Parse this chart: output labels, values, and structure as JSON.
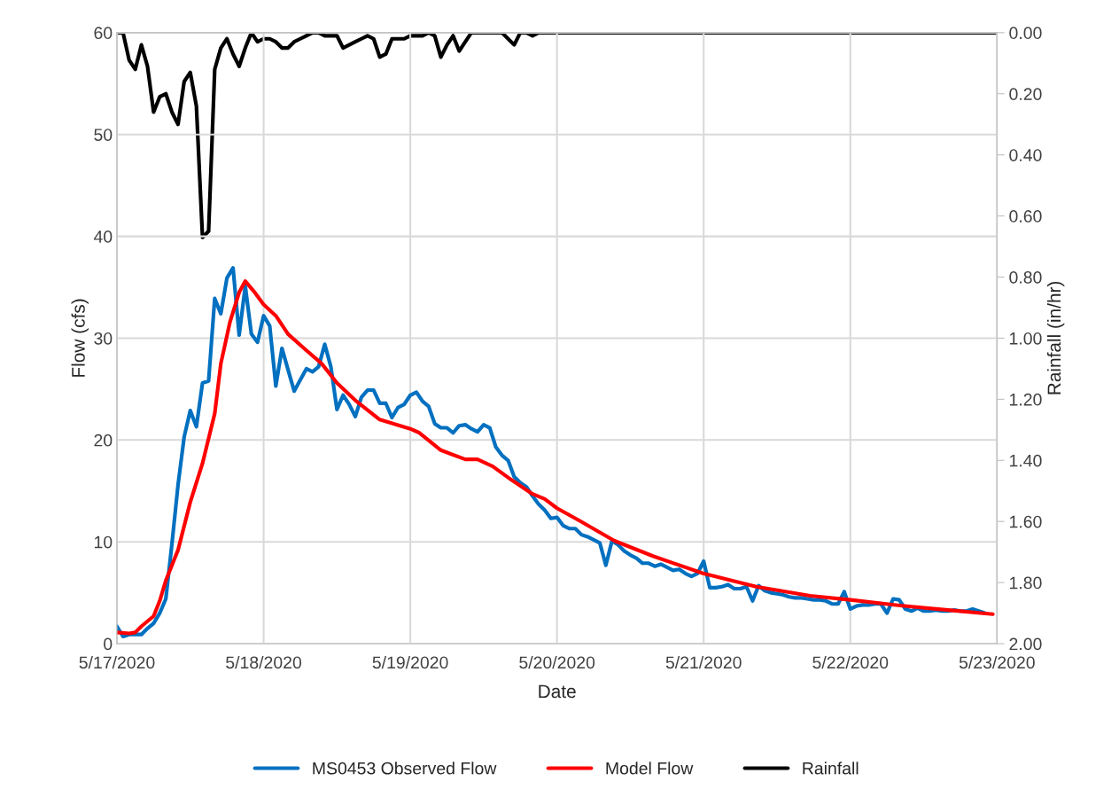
{
  "chart_data": {
    "type": "line",
    "xlabel": "Date",
    "ylabel": "Flow (cfs)",
    "y2label": "Rainfall (in/hr)",
    "xlim": [
      "2020-05-17",
      "2020-05-23"
    ],
    "xticks": [
      {
        "value": "2020-05-17",
        "label": "5/17/2020"
      },
      {
        "value": "2020-05-18",
        "label": "5/18/2020"
      },
      {
        "value": "2020-05-19",
        "label": "5/19/2020"
      },
      {
        "value": "2020-05-20",
        "label": "5/20/2020"
      },
      {
        "value": "2020-05-21",
        "label": "5/21/2020"
      },
      {
        "value": "2020-05-22",
        "label": "5/22/2020"
      },
      {
        "value": "2020-05-23",
        "label": "5/23/2020"
      }
    ],
    "ylim": [
      0,
      60
    ],
    "yticks": [
      0,
      10,
      20,
      30,
      40,
      50,
      60
    ],
    "y2lim": [
      2,
      0
    ],
    "y2ticks": [
      {
        "value": 0,
        "label": "0.00"
      },
      {
        "value": 0.2,
        "label": "0.20"
      },
      {
        "value": 0.4,
        "label": "0.40"
      },
      {
        "value": 0.6,
        "label": "0.60"
      },
      {
        "value": 0.8,
        "label": "0.80"
      },
      {
        "value": 1,
        "label": "1.00"
      },
      {
        "value": 1.2,
        "label": "1.20"
      },
      {
        "value": 1.4,
        "label": "1.40"
      },
      {
        "value": 1.6,
        "label": "1.60"
      },
      {
        "value": 1.8,
        "label": "1.80"
      },
      {
        "value": 2,
        "label": "2.00"
      }
    ],
    "grid": true,
    "legend": "bottom",
    "marker": "none",
    "line_style": "solid",
    "series": [
      {
        "name": "MS0453 Observed Flow",
        "color": "#0070c0",
        "x": [
          "2020-05-17T00:00",
          "2020-05-17T01:00",
          "2020-05-17T02:00",
          "2020-05-17T03:00",
          "2020-05-17T04:00",
          "2020-05-17T05:00",
          "2020-05-17T06:00",
          "2020-05-17T07:00",
          "2020-05-17T08:00",
          "2020-05-17T09:00",
          "2020-05-17T10:00",
          "2020-05-17T11:00",
          "2020-05-17T12:00",
          "2020-05-17T13:00",
          "2020-05-17T14:00",
          "2020-05-17T15:00",
          "2020-05-17T16:00",
          "2020-05-17T17:00",
          "2020-05-17T18:00",
          "2020-05-17T19:00",
          "2020-05-17T20:00",
          "2020-05-17T21:00",
          "2020-05-17T22:00",
          "2020-05-17T23:00",
          "2020-05-18T00:00",
          "2020-05-18T01:00",
          "2020-05-18T02:00",
          "2020-05-18T03:00",
          "2020-05-18T04:00",
          "2020-05-18T05:00",
          "2020-05-18T06:00",
          "2020-05-18T07:00",
          "2020-05-18T08:00",
          "2020-05-18T09:00",
          "2020-05-18T10:00",
          "2020-05-18T11:00",
          "2020-05-18T12:00",
          "2020-05-18T13:00",
          "2020-05-18T14:00",
          "2020-05-18T15:00",
          "2020-05-18T16:00",
          "2020-05-18T17:00",
          "2020-05-18T18:00",
          "2020-05-18T19:00",
          "2020-05-18T20:00",
          "2020-05-18T21:00",
          "2020-05-18T22:00",
          "2020-05-18T23:00",
          "2020-05-19T00:00",
          "2020-05-19T01:00",
          "2020-05-19T02:00",
          "2020-05-19T03:00",
          "2020-05-19T04:00",
          "2020-05-19T05:00",
          "2020-05-19T06:00",
          "2020-05-19T07:00",
          "2020-05-19T08:00",
          "2020-05-19T09:00",
          "2020-05-19T10:00",
          "2020-05-19T11:00",
          "2020-05-19T12:00",
          "2020-05-19T13:00",
          "2020-05-19T14:00",
          "2020-05-19T15:00",
          "2020-05-19T16:00",
          "2020-05-19T17:00",
          "2020-05-19T18:00",
          "2020-05-19T19:00",
          "2020-05-19T20:00",
          "2020-05-19T21:00",
          "2020-05-19T22:00",
          "2020-05-19T23:00",
          "2020-05-20T00:00",
          "2020-05-20T01:00",
          "2020-05-20T02:00",
          "2020-05-20T03:00",
          "2020-05-20T04:00",
          "2020-05-20T05:00",
          "2020-05-20T06:00",
          "2020-05-20T07:00",
          "2020-05-20T08:00",
          "2020-05-20T09:00",
          "2020-05-20T10:00",
          "2020-05-20T11:00",
          "2020-05-20T12:00",
          "2020-05-20T13:00",
          "2020-05-20T14:00",
          "2020-05-20T15:00",
          "2020-05-20T16:00",
          "2020-05-20T17:00",
          "2020-05-20T18:00",
          "2020-05-20T19:00",
          "2020-05-20T20:00",
          "2020-05-20T21:00",
          "2020-05-20T22:00",
          "2020-05-20T23:00",
          "2020-05-21T00:00",
          "2020-05-21T01:00",
          "2020-05-21T02:00",
          "2020-05-21T03:00",
          "2020-05-21T04:00",
          "2020-05-21T05:00",
          "2020-05-21T06:00",
          "2020-05-21T07:00",
          "2020-05-21T08:00",
          "2020-05-21T09:00",
          "2020-05-21T10:00",
          "2020-05-21T11:00",
          "2020-05-21T12:00",
          "2020-05-21T13:00",
          "2020-05-21T14:00",
          "2020-05-21T15:00",
          "2020-05-21T16:00",
          "2020-05-21T17:00",
          "2020-05-21T18:00",
          "2020-05-21T19:00",
          "2020-05-21T20:00",
          "2020-05-21T21:00",
          "2020-05-21T22:00",
          "2020-05-21T23:00",
          "2020-05-22T00:00",
          "2020-05-22T01:00",
          "2020-05-22T02:00",
          "2020-05-22T03:00",
          "2020-05-22T04:00",
          "2020-05-22T05:00",
          "2020-05-22T06:00",
          "2020-05-22T07:00",
          "2020-05-22T08:00",
          "2020-05-22T09:00",
          "2020-05-22T10:00",
          "2020-05-22T11:00",
          "2020-05-22T12:00",
          "2020-05-22T13:00",
          "2020-05-22T14:00",
          "2020-05-22T15:00",
          "2020-05-22T16:00",
          "2020-05-22T17:00",
          "2020-05-22T18:00",
          "2020-05-22T19:00",
          "2020-05-22T20:00",
          "2020-05-22T21:00",
          "2020-05-22T22:00"
        ],
        "values": [
          1.7,
          0.7,
          0.9,
          0.9,
          0.9,
          1.5,
          2.0,
          3.0,
          4.4,
          9.8,
          15.6,
          20.3,
          22.9,
          21.3,
          25.6,
          25.8,
          33.9,
          32.4,
          35.9,
          36.9,
          30.3,
          35.1,
          30.4,
          29.6,
          32.2,
          31.2,
          25.3,
          29.0,
          26.9,
          24.8,
          25.9,
          27.0,
          26.7,
          27.2,
          29.4,
          27.2,
          23.0,
          24.4,
          23.5,
          22.3,
          24.2,
          24.9,
          24.9,
          23.6,
          23.6,
          22.2,
          23.2,
          23.5,
          24.4,
          24.7,
          23.8,
          23.3,
          21.6,
          21.2,
          21.2,
          20.7,
          21.4,
          21.5,
          21.1,
          20.8,
          21.5,
          21.2,
          19.3,
          18.5,
          18.0,
          16.4,
          15.8,
          15.4,
          14.5,
          13.7,
          13.1,
          12.3,
          12.4,
          11.6,
          11.3,
          11.3,
          10.7,
          10.5,
          10.2,
          9.9,
          7.7,
          10.1,
          9.7,
          9.1,
          8.7,
          8.4,
          7.9,
          7.9,
          7.6,
          7.8,
          7.5,
          7.2,
          7.3,
          6.9,
          6.6,
          6.9,
          8.1,
          5.5,
          5.5,
          5.6,
          5.8,
          5.4,
          5.4,
          5.6,
          4.2,
          5.7,
          5.2,
          5.0,
          4.9,
          4.8,
          4.6,
          4.5,
          4.5,
          4.4,
          4.3,
          4.3,
          4.2,
          3.9,
          3.9,
          5.1,
          3.4,
          3.7,
          3.8,
          3.8,
          3.9,
          3.9,
          3.0,
          4.4,
          4.3,
          3.4,
          3.2,
          3.5,
          3.2,
          3.2,
          3.3,
          3.2,
          3.2,
          3.3,
          3.2,
          3.2,
          3.4,
          3.2,
          3.0
        ]
      },
      {
        "name": "Model Flow",
        "color": "#ff0000",
        "x": [
          "2020-05-17T00:00",
          "2020-05-17T02:00",
          "2020-05-17T03:00",
          "2020-05-17T04:00",
          "2020-05-17T06:00",
          "2020-05-17T07:00",
          "2020-05-17T08:00",
          "2020-05-17T10:00",
          "2020-05-17T12:00",
          "2020-05-17T14:00",
          "2020-05-17T16:00",
          "2020-05-17T17:00",
          "2020-05-17T18:30",
          "2020-05-17T20:00",
          "2020-05-17T21:00",
          "2020-05-17T22:24",
          "2020-05-18T00:00",
          "2020-05-18T02:00",
          "2020-05-18T04:00",
          "2020-05-18T07:00",
          "2020-05-18T09:30",
          "2020-05-18T12:00",
          "2020-05-18T15:00",
          "2020-05-18T19:00",
          "2020-05-19T00:00",
          "2020-05-19T01:30",
          "2020-05-19T05:00",
          "2020-05-19T09:00",
          "2020-05-19T11:00",
          "2020-05-19T13:30",
          "2020-05-19T16:30",
          "2020-05-19T20:00",
          "2020-05-19T22:00",
          "2020-05-20T00:00",
          "2020-05-20T03:36",
          "2020-05-20T09:24",
          "2020-05-20T15:42",
          "2020-05-20T23:54",
          "2020-05-21T08:36",
          "2020-05-21T17:24",
          "2020-05-22T00:00",
          "2020-05-22T08:48",
          "2020-05-22T16:00",
          "2020-05-22T23:18"
        ],
        "values": [
          1.1,
          1.0,
          1.1,
          1.7,
          2.7,
          4.2,
          6.2,
          9.2,
          13.9,
          17.7,
          22.6,
          27.5,
          31.6,
          34.5,
          35.6,
          34.6,
          33.3,
          32.2,
          30.4,
          28.8,
          27.5,
          25.6,
          23.9,
          22.0,
          21.1,
          20.7,
          19.0,
          18.1,
          18.1,
          17.4,
          16.1,
          14.7,
          14.2,
          13.3,
          12.1,
          10.1,
          8.6,
          6.9,
          5.6,
          4.7,
          4.3,
          3.7,
          3.3,
          2.9
        ]
      },
      {
        "name": "Rainfall",
        "color": "#000000",
        "axis": "y2",
        "x": [
          "2020-05-17T00:00",
          "2020-05-17T01:00",
          "2020-05-17T02:00",
          "2020-05-17T03:00",
          "2020-05-17T04:00",
          "2020-05-17T05:00",
          "2020-05-17T06:00",
          "2020-05-17T07:00",
          "2020-05-17T08:00",
          "2020-05-17T09:00",
          "2020-05-17T10:00",
          "2020-05-17T11:00",
          "2020-05-17T12:00",
          "2020-05-17T13:00",
          "2020-05-17T14:00",
          "2020-05-17T15:00",
          "2020-05-17T16:00",
          "2020-05-17T17:00",
          "2020-05-17T18:00",
          "2020-05-17T19:00",
          "2020-05-17T20:00",
          "2020-05-17T21:00",
          "2020-05-17T22:00",
          "2020-05-17T23:00",
          "2020-05-18T00:00",
          "2020-05-18T01:00",
          "2020-05-18T02:00",
          "2020-05-18T03:00",
          "2020-05-18T04:00",
          "2020-05-18T05:00",
          "2020-05-18T06:00",
          "2020-05-18T07:00",
          "2020-05-18T08:00",
          "2020-05-18T09:00",
          "2020-05-18T10:00",
          "2020-05-18T11:00",
          "2020-05-18T12:00",
          "2020-05-18T13:00",
          "2020-05-18T14:00",
          "2020-05-18T15:00",
          "2020-05-18T16:00",
          "2020-05-18T17:00",
          "2020-05-18T18:00",
          "2020-05-18T19:00",
          "2020-05-18T20:00",
          "2020-05-18T21:00",
          "2020-05-18T22:00",
          "2020-05-18T23:00",
          "2020-05-19T00:00",
          "2020-05-19T01:00",
          "2020-05-19T02:00",
          "2020-05-19T03:00",
          "2020-05-19T04:00",
          "2020-05-19T05:00",
          "2020-05-19T06:00",
          "2020-05-19T07:00",
          "2020-05-19T08:00",
          "2020-05-19T09:00",
          "2020-05-19T10:00",
          "2020-05-19T11:00",
          "2020-05-19T15:00",
          "2020-05-19T16:00",
          "2020-05-19T17:00",
          "2020-05-19T18:00",
          "2020-05-19T19:00",
          "2020-05-19T20:00",
          "2020-05-19T21:00",
          "2020-05-23T00:00"
        ],
        "values": [
          0,
          0,
          0.09,
          0.12,
          0.04,
          0.11,
          0.26,
          0.21,
          0.2,
          0.26,
          0.3,
          0.16,
          0.13,
          0.24,
          0.67,
          0.65,
          0.12,
          0.05,
          0.02,
          0.07,
          0.11,
          0.05,
          0,
          0.03,
          0.02,
          0.02,
          0.03,
          0.05,
          0.05,
          0.03,
          0.02,
          0.01,
          0,
          0,
          0.01,
          0.01,
          0.01,
          0.05,
          0.04,
          0.03,
          0.02,
          0.01,
          0.02,
          0.08,
          0.07,
          0.02,
          0.02,
          0.02,
          0.01,
          0.01,
          0.01,
          0,
          0.01,
          0.08,
          0.04,
          0.01,
          0.06,
          0.03,
          0,
          0,
          0,
          0.02,
          0.04,
          0,
          0,
          0.01,
          0,
          0
        ]
      }
    ]
  }
}
